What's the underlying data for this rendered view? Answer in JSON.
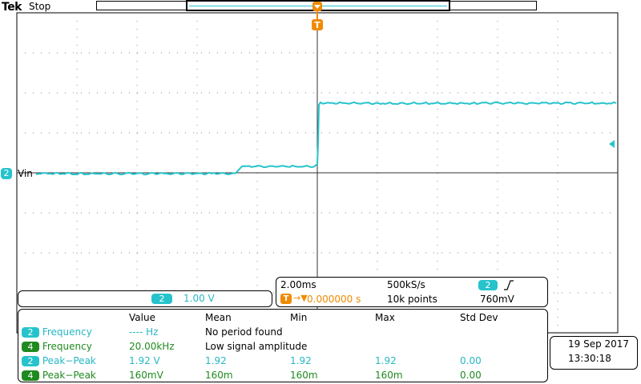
{
  "header": {
    "brand": "Tek",
    "acq_status": "Stop"
  },
  "trigger": {
    "marker_label": "T"
  },
  "channel2": {
    "number": "2",
    "label": "Vin",
    "scale": "1.00 V",
    "color": "#27c3cc"
  },
  "timebase": {
    "time_per_div": "2.00ms",
    "sample_rate": "500kS/s",
    "trigger_position": "0.000000 s",
    "record_length": "10k points",
    "trigger_source": "2",
    "trigger_slope_icon": "rising-edge-icon",
    "trigger_level": "760mV"
  },
  "measurements": {
    "headers": [
      "Value",
      "Mean",
      "Min",
      "Max",
      "Std Dev"
    ],
    "rows": [
      {
        "channel": "2",
        "name": "Frequency",
        "value": "---- Hz",
        "mean": "No period found",
        "min": "",
        "max": "",
        "std": ""
      },
      {
        "channel": "4",
        "name": "Frequency",
        "value": "20.00kHz",
        "mean": "Low signal amplitude",
        "min": "",
        "max": "",
        "std": ""
      },
      {
        "channel": "2",
        "name": "Peak−Peak",
        "value": "1.92 V",
        "mean": "1.92",
        "min": "1.92",
        "max": "1.92",
        "std": "0.00"
      },
      {
        "channel": "4",
        "name": "Peak−Peak",
        "value": "160mV",
        "mean": "160m",
        "min": "160m",
        "max": "160m",
        "std": "0.00"
      }
    ]
  },
  "datetime": {
    "date": "19 Sep  2017",
    "time": "13:30:18"
  },
  "colors": {
    "ch2": "#27c3cc",
    "ch4": "#1f8a1f",
    "trigger": "#f08a00"
  }
}
